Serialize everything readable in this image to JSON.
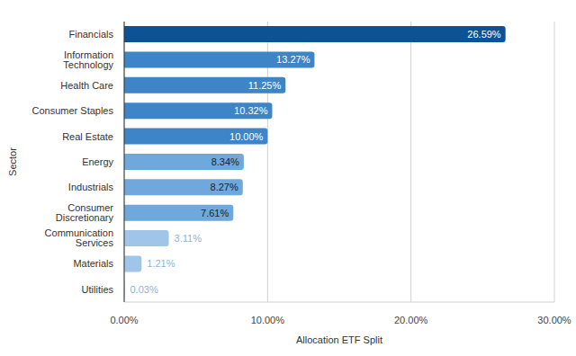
{
  "chart_data": {
    "type": "bar",
    "orientation": "horizontal",
    "x_label": "Allocation ETF Split",
    "y_label": "Sector",
    "categories": [
      "Financials",
      "Information Technology",
      "Health Care",
      "Consumer Staples",
      "Real Estate",
      "Energy",
      "Industrials",
      "Consumer Discretionary",
      "Communication Services",
      "Materials",
      "Utilities"
    ],
    "values": [
      26.59,
      13.27,
      11.25,
      10.32,
      10.0,
      8.34,
      8.27,
      7.61,
      3.11,
      1.21,
      0.03
    ],
    "value_labels": [
      "26.59%",
      "13.27%",
      "11.25%",
      "10.32%",
      "10.00%",
      "8.34%",
      "8.27%",
      "7.61%",
      "3.11%",
      "1.21%",
      "0.03%"
    ],
    "colors": [
      "#0b5394",
      "#3d85c6",
      "#3d85c6",
      "#3d85c6",
      "#3d85c6",
      "#6fa8dc",
      "#6fa8dc",
      "#6fa8dc",
      "#9fc5e8",
      "#9fc5e8",
      "#9fc5e8"
    ],
    "xlim": [
      0,
      30
    ],
    "xticks": [
      {
        "value": 0,
        "label": "0.00%"
      },
      {
        "value": 10,
        "label": "10.00%"
      },
      {
        "value": 20,
        "label": "20.00%"
      },
      {
        "value": 30,
        "label": "30.00%"
      }
    ],
    "grid": true,
    "data_labels": true
  }
}
